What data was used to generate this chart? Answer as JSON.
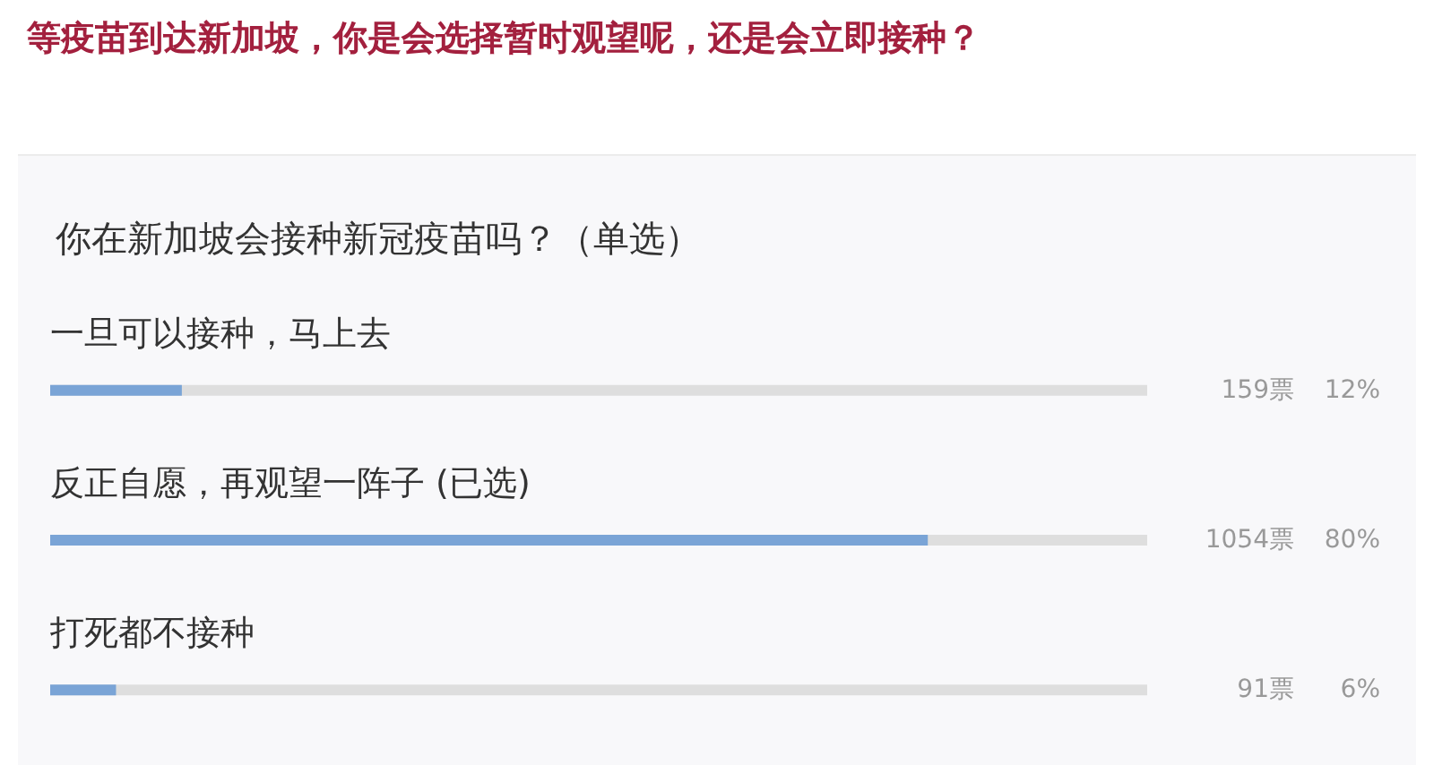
{
  "chart_data": {
    "type": "bar",
    "orientation": "horizontal",
    "title": "等疫苗到达新加坡，你是会选择暂时观望呢，还是会立即接种？",
    "subtitle": "你在新加坡会接种新冠疫苗吗？（单选）",
    "categories": [
      "一旦可以接种，马上去",
      "反正自愿，再观望一阵子 (已选)",
      "打死都不接种"
    ],
    "values": [
      12,
      80,
      6
    ],
    "color": "#7aa4d6",
    "xlim": [
      0,
      100
    ],
    "tick_labels": "y",
    "value_labels": [
      "12%",
      "80%",
      "6%"
    ],
    "annotations": [
      "159票",
      "1054票",
      "91票"
    ]
  }
}
